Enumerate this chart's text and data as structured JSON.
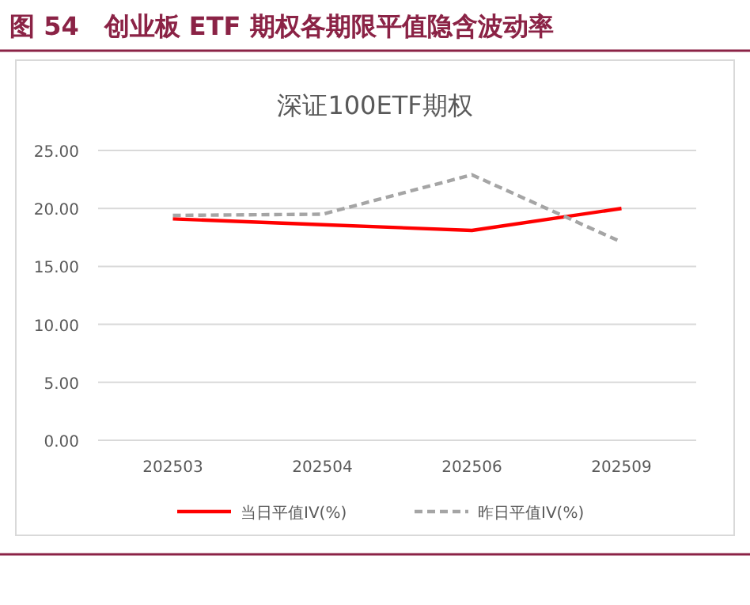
{
  "chart_data": {
    "type": "line",
    "title": "图 54　创业板 ETF 期权各期限平值隐含波动率",
    "subtitle": "深证100ETF期权",
    "categories": [
      "202503",
      "202504",
      "202506",
      "202509"
    ],
    "series": [
      {
        "name": "当日平值IV(%)",
        "color": "#ff0000",
        "line_style": "solid",
        "values": [
          19.1,
          18.6,
          18.1,
          20.0
        ]
      },
      {
        "name": "昨日平值IV(%)",
        "color": "#a5a5a5",
        "line_style": "dashed",
        "values": [
          19.4,
          19.5,
          22.9,
          17.1
        ]
      }
    ],
    "ylim": [
      0,
      25
    ],
    "yticks": [
      {
        "value": 0,
        "label": "0.00"
      },
      {
        "value": 5,
        "label": "5.00"
      },
      {
        "value": 10,
        "label": "10.00"
      },
      {
        "value": 15,
        "label": "15.00"
      },
      {
        "value": 20,
        "label": "20.00"
      },
      {
        "value": 25,
        "label": "25.00"
      }
    ],
    "grid": "y",
    "legend": "bottom",
    "marker": "none"
  }
}
